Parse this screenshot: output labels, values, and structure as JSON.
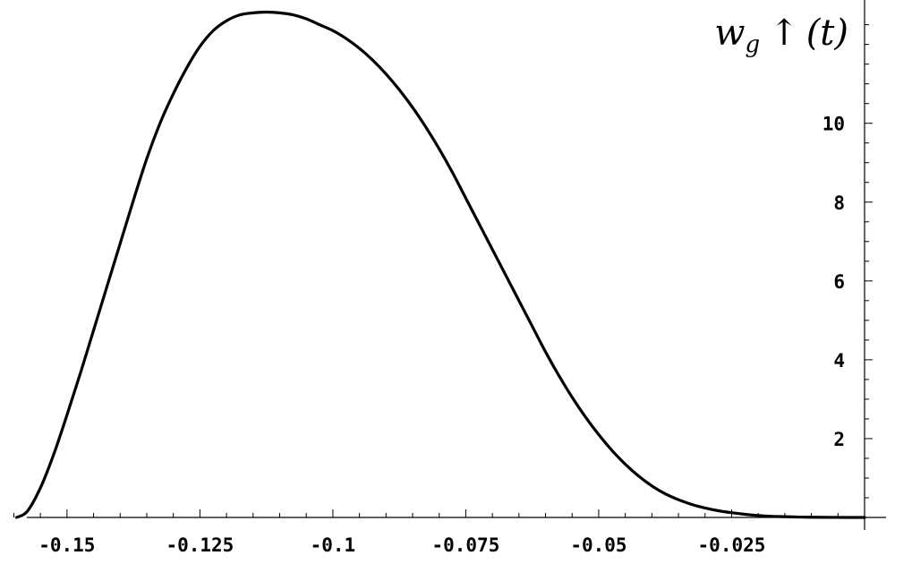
{
  "chart_data": {
    "type": "line",
    "ylabel": {
      "var": "w",
      "sub": "g",
      "arrow": "↑",
      "arg": "(t)"
    },
    "xlim": [
      -0.1626,
      0.0
    ],
    "ylim": [
      0,
      12.9
    ],
    "x_ticks": [
      {
        "value": -0.15,
        "label": "-0.15"
      },
      {
        "value": -0.125,
        "label": "-0.125"
      },
      {
        "value": -0.1,
        "label": "-0.1"
      },
      {
        "value": -0.075,
        "label": "-0.075"
      },
      {
        "value": -0.05,
        "label": "-0.05"
      },
      {
        "value": -0.025,
        "label": "-0.025"
      }
    ],
    "y_ticks": [
      {
        "value": 2,
        "label": "2"
      },
      {
        "value": 4,
        "label": "4"
      },
      {
        "value": 6,
        "label": "6"
      },
      {
        "value": 8,
        "label": "8"
      },
      {
        "value": 10,
        "label": "10"
      }
    ],
    "grid": false,
    "series": [
      {
        "color": "#000000",
        "x": [
          -0.1595,
          -0.1575,
          -0.155,
          -0.1525,
          -0.15,
          -0.1475,
          -0.145,
          -0.1425,
          -0.14,
          -0.1375,
          -0.135,
          -0.1325,
          -0.13,
          -0.1275,
          -0.125,
          -0.1225,
          -0.12,
          -0.1175,
          -0.115,
          -0.1125,
          -0.11,
          -0.1075,
          -0.105,
          -0.1025,
          -0.1,
          -0.0975,
          -0.095,
          -0.0925,
          -0.09,
          -0.0875,
          -0.085,
          -0.0825,
          -0.08,
          -0.0775,
          -0.075,
          -0.0725,
          -0.07,
          -0.0675,
          -0.065,
          -0.0625,
          -0.06,
          -0.0575,
          -0.055,
          -0.0525,
          -0.05,
          -0.0475,
          -0.045,
          -0.0425,
          -0.04,
          -0.0375,
          -0.035,
          -0.0325,
          -0.03,
          -0.0275,
          -0.025,
          -0.0225,
          -0.02,
          -0.0175,
          -0.015,
          -0.0125,
          -0.01,
          -0.0075,
          -0.005,
          -0.0025,
          0.0
        ],
        "y": [
          0.0,
          0.15,
          0.75,
          1.6,
          2.6,
          3.65,
          4.75,
          5.85,
          6.95,
          8.05,
          9.1,
          10.0,
          10.75,
          11.4,
          11.95,
          12.35,
          12.6,
          12.75,
          12.8,
          12.82,
          12.8,
          12.75,
          12.65,
          12.5,
          12.35,
          12.15,
          11.9,
          11.6,
          11.25,
          10.85,
          10.4,
          9.9,
          9.35,
          8.75,
          8.1,
          7.45,
          6.8,
          6.15,
          5.5,
          4.85,
          4.2,
          3.6,
          3.05,
          2.55,
          2.1,
          1.7,
          1.35,
          1.05,
          0.8,
          0.6,
          0.45,
          0.33,
          0.24,
          0.17,
          0.12,
          0.08,
          0.05,
          0.03,
          0.02,
          0.01,
          0.005,
          0.002,
          0.001,
          0.0,
          0.0
        ]
      }
    ]
  }
}
